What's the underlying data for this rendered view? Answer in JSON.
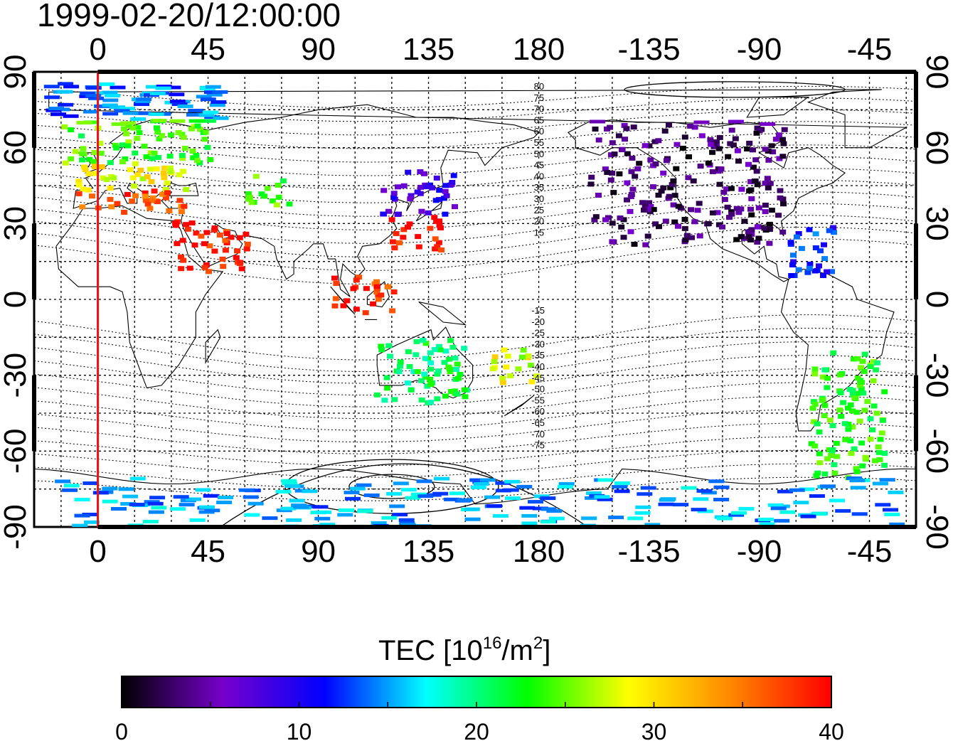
{
  "timestamp": "1999-02-20/12:00:00",
  "map": {
    "lon_ticks_top": [
      "0",
      "45",
      "90",
      "135",
      "180",
      "-135",
      "-90",
      "-45"
    ],
    "lon_ticks_bottom": [
      "0",
      "45",
      "90",
      "135",
      "180",
      "-135",
      "-90",
      "-45"
    ],
    "lat_ticks_left": [
      "90",
      "60",
      "30",
      "0",
      "-30",
      "-60",
      "-90"
    ],
    "lat_ticks_right": [
      "90",
      "60",
      "30",
      "0",
      "-30",
      "-60",
      "-90"
    ],
    "lon_range": [
      -26,
      334
    ],
    "lat_range": [
      -90,
      90
    ],
    "grid": true,
    "meridian_marker_lon": 0,
    "meridian_marker_color": "#ee1111",
    "contour_labels_north": [
      "80",
      "75",
      "70",
      "65",
      "60",
      "55",
      "50",
      "45",
      "40",
      "35",
      "30",
      "25",
      "20",
      "15"
    ],
    "contour_labels_south": [
      "-15",
      "-20",
      "-25",
      "-30",
      "-35",
      "-40",
      "-45",
      "-50",
      "-55",
      "-60",
      "-65",
      "-70",
      "-75"
    ]
  },
  "colorbar": {
    "title_prefix": "TEC  [10",
    "title_sup1": "16",
    "title_mid": "/m",
    "title_sup2": "2",
    "title_suffix": "]",
    "tick_labels": [
      "0",
      "10",
      "20",
      "30",
      "40"
    ],
    "range": [
      0,
      40
    ],
    "stops": [
      "#000000",
      "#7700cc",
      "#0000ff",
      "#00ffff",
      "#00ff00",
      "#ffff00",
      "#ff8800",
      "#ff0000"
    ]
  },
  "chart_data": {
    "type": "heatmap",
    "title": "1999-02-20/12:00:00",
    "xlabel": "",
    "ylabel": "",
    "value_label": "TEC [10^16/m^2]",
    "value_range": [
      0,
      40
    ],
    "regions": [
      {
        "lon": [
          -22,
          50
        ],
        "lat": [
          72,
          86
        ],
        "tec": 14
      },
      {
        "lon": [
          -15,
          45
        ],
        "lat": [
          55,
          72
        ],
        "tec": 24
      },
      {
        "lon": [
          -15,
          35
        ],
        "lat": [
          44,
          55
        ],
        "tec": 29
      },
      {
        "lon": [
          -10,
          35
        ],
        "lat": [
          35,
          44
        ],
        "tec": 37
      },
      {
        "lon": [
          30,
          60
        ],
        "lat": [
          12,
          32
        ],
        "tec": 39
      },
      {
        "lon": [
          60,
          78
        ],
        "lat": [
          38,
          50
        ],
        "tec": 24
      },
      {
        "lon": [
          115,
          145
        ],
        "lat": [
          34,
          52
        ],
        "tec": 9
      },
      {
        "lon": [
          118,
          140
        ],
        "lat": [
          20,
          34
        ],
        "tec": 39
      },
      {
        "lon": [
          95,
          120
        ],
        "lat": [
          -5,
          10
        ],
        "tec": 38
      },
      {
        "lon": [
          112,
          150
        ],
        "lat": [
          -40,
          -15
        ],
        "tec": 21
      },
      {
        "lon": [
          160,
          178
        ],
        "lat": [
          -32,
          -18
        ],
        "tec": 28
      },
      {
        "lon": [
          -160,
          -80
        ],
        "lat": [
          22,
          72
        ],
        "tec": 3
      },
      {
        "lon": [
          -80,
          -60
        ],
        "lat": [
          10,
          30
        ],
        "tec": 12
      },
      {
        "lon": [
          -70,
          -40
        ],
        "lat": [
          -70,
          -20
        ],
        "tec": 23
      },
      {
        "lon": [
          -20,
          330
        ],
        "lat": [
          -90,
          -70
        ],
        "tec": 15
      }
    ]
  }
}
